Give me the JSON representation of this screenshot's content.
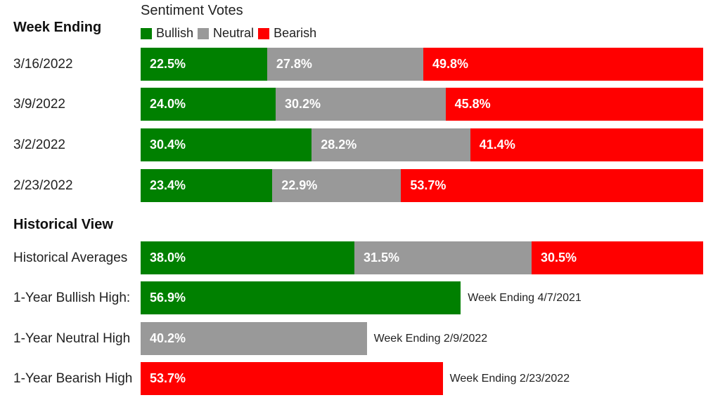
{
  "chart_data": {
    "type": "bar",
    "title": "Sentiment Votes",
    "orientation": "horizontal",
    "stacked": true,
    "xlim": [
      0,
      100
    ],
    "legend_position": "top",
    "legend": [
      {
        "name": "Bullish",
        "color": "#008000"
      },
      {
        "name": "Neutral",
        "color": "#999999"
      },
      {
        "name": "Bearish",
        "color": "#ff0000"
      }
    ],
    "weekly_heading": "Week Ending",
    "weekly": [
      {
        "label": "3/16/2022",
        "values": [
          22.5,
          27.8,
          49.8
        ],
        "texts": [
          "22.5%",
          "27.8%",
          "49.8%"
        ]
      },
      {
        "label": "3/9/2022",
        "values": [
          24.0,
          30.2,
          45.8
        ],
        "texts": [
          "24.0%",
          "30.2%",
          "45.8%"
        ]
      },
      {
        "label": "3/2/2022",
        "values": [
          30.4,
          28.2,
          41.4
        ],
        "texts": [
          "30.4%",
          "28.2%",
          "41.4%"
        ]
      },
      {
        "label": "2/23/2022",
        "values": [
          23.4,
          22.9,
          53.7
        ],
        "texts": [
          "23.4%",
          "22.9%",
          "53.7%"
        ]
      }
    ],
    "historical_heading": "Historical View",
    "historical": [
      {
        "label": "Historical Averages",
        "segments": [
          {
            "series": 0,
            "value": 38.0,
            "text": "38.0%"
          },
          {
            "series": 1,
            "value": 31.5,
            "text": "31.5%"
          },
          {
            "series": 2,
            "value": 30.5,
            "text": "30.5%"
          }
        ],
        "note": ""
      },
      {
        "label": "1-Year Bullish High:",
        "segments": [
          {
            "series": 0,
            "value": 56.9,
            "text": "56.9%"
          }
        ],
        "note": "Week Ending 4/7/2021"
      },
      {
        "label": "1-Year Neutral High",
        "segments": [
          {
            "series": 1,
            "value": 40.2,
            "text": "40.2%"
          }
        ],
        "note": "Week Ending 2/9/2022"
      },
      {
        "label": "1-Year Bearish High",
        "segments": [
          {
            "series": 2,
            "value": 53.7,
            "text": "53.7%"
          }
        ],
        "note": "Week Ending 2/23/2022"
      }
    ]
  }
}
